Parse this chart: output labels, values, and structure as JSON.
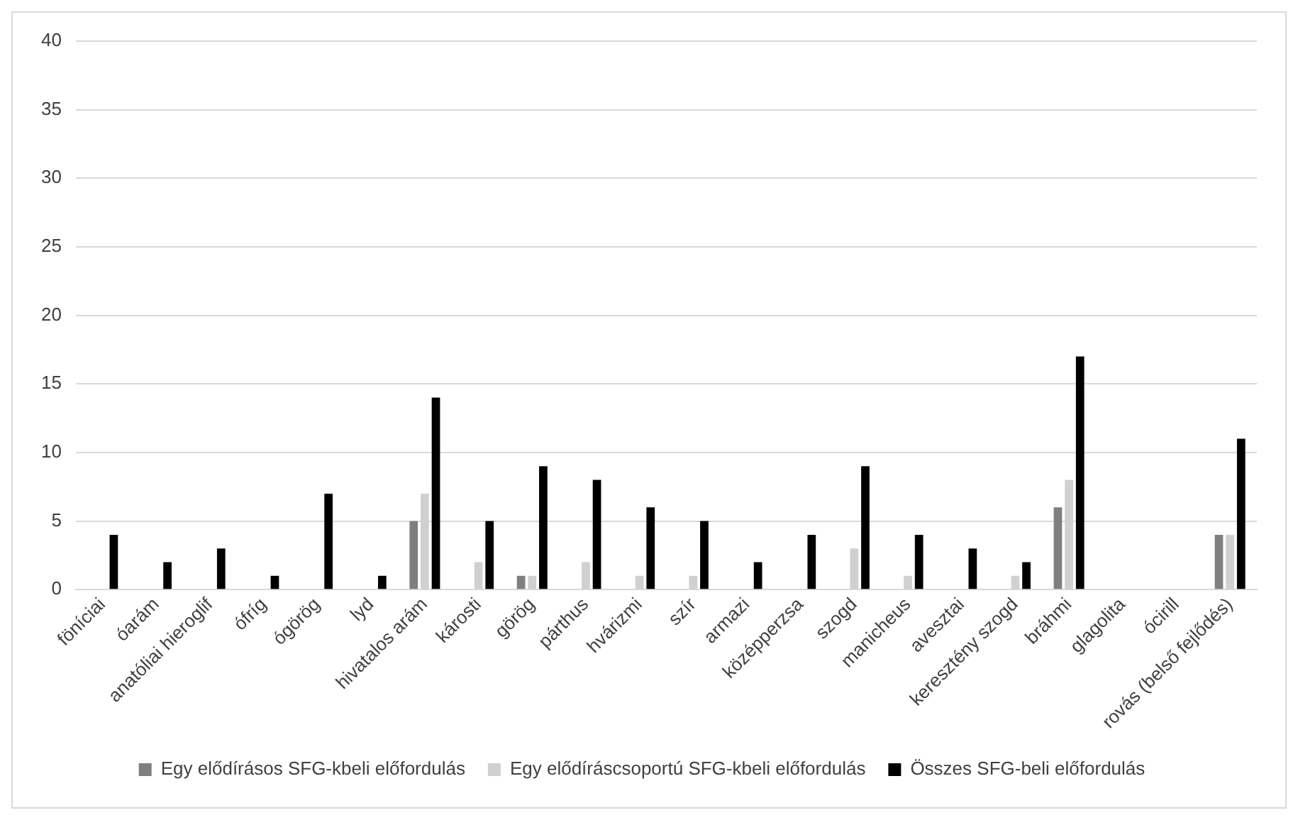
{
  "chart_data": {
    "type": "bar",
    "categories": [
      "föníciai",
      "óarám",
      "anatóliai hieroglif",
      "ófríg",
      "ógörög",
      "lyd",
      "hivatalos arám",
      "károsti",
      "görög",
      "párthus",
      "hvárizmi",
      "szír",
      "armazi",
      "középperzsa",
      "szogd",
      "manicheus",
      "avesztai",
      "keresztény szogd",
      "bráhmi",
      "glagolita",
      "ócirill",
      "rovás (belső fejlődés)"
    ],
    "series": [
      {
        "name": "Egy elődírásos SFG-kbeli előfordulás",
        "color": "#7f7f7f",
        "values": [
          0,
          0,
          0,
          0,
          0,
          0,
          5,
          0,
          1,
          0,
          0,
          0,
          0,
          0,
          0,
          0,
          0,
          0,
          6,
          0,
          0,
          4
        ]
      },
      {
        "name": "Egy elődíráscsoportú SFG-kbeli előfordulás",
        "color": "#d0d0d0",
        "values": [
          0,
          0,
          0,
          0,
          0,
          0,
          7,
          2,
          1,
          2,
          1,
          1,
          0,
          0,
          3,
          1,
          0,
          1,
          8,
          0,
          0,
          4
        ]
      },
      {
        "name": "Összes SFG-beli előfordulás",
        "color": "#000000",
        "values": [
          4,
          2,
          3,
          1,
          7,
          1,
          14,
          5,
          9,
          8,
          6,
          5,
          2,
          4,
          9,
          4,
          3,
          2,
          17,
          0,
          0,
          11
        ]
      }
    ],
    "ylim": [
      0,
      40
    ],
    "yticks": [
      0,
      5,
      10,
      15,
      20,
      25,
      30,
      35,
      40
    ],
    "grid": "y",
    "legend": "bottom"
  }
}
